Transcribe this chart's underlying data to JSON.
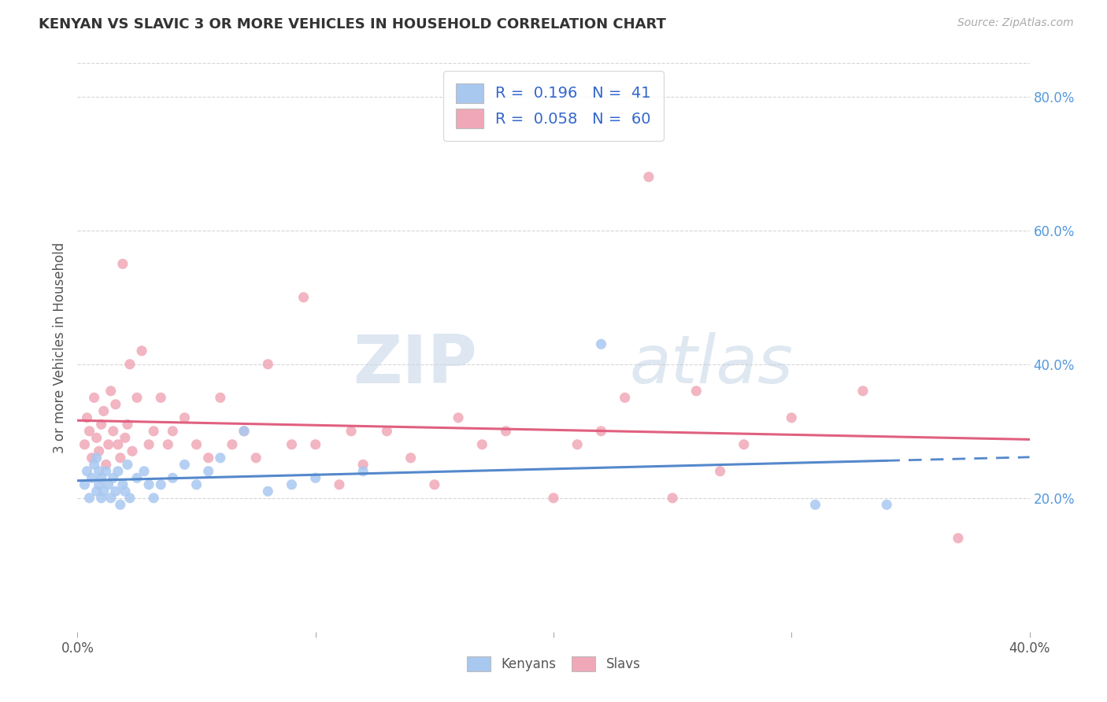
{
  "title": "KENYAN VS SLAVIC 3 OR MORE VEHICLES IN HOUSEHOLD CORRELATION CHART",
  "source_text": "Source: ZipAtlas.com",
  "ylabel": "3 or more Vehicles in Household",
  "xlabel": "",
  "xlim": [
    0.0,
    0.4
  ],
  "ylim": [
    0.0,
    0.85
  ],
  "xticks": [
    0.0,
    0.1,
    0.2,
    0.3,
    0.4
  ],
  "xticklabels": [
    "0.0%",
    "",
    "",
    "",
    "40.0%"
  ],
  "yticks_right": [
    0.2,
    0.4,
    0.6,
    0.8
  ],
  "ytick_right_labels": [
    "20.0%",
    "40.0%",
    "60.0%",
    "80.0%"
  ],
  "kenyan_color": "#a8c8f0",
  "slavic_color": "#f0a8b8",
  "kenyan_line_color": "#5588cc",
  "slavic_line_color": "#e06080",
  "legend_r_kenyan": "R =  0.196   N =  41",
  "legend_r_slavic": "R =  0.058   N =  60",
  "legend_label_kenyan": "Kenyans",
  "legend_label_slavic": "Slavs",
  "watermark_zip": "ZIP",
  "watermark_atlas": "atlas",
  "kenyan_x": [
    0.003,
    0.004,
    0.005,
    0.006,
    0.007,
    0.008,
    0.008,
    0.009,
    0.009,
    0.01,
    0.01,
    0.011,
    0.012,
    0.013,
    0.014,
    0.015,
    0.016,
    0.017,
    0.018,
    0.019,
    0.02,
    0.021,
    0.022,
    0.025,
    0.028,
    0.03,
    0.032,
    0.035,
    0.04,
    0.045,
    0.05,
    0.055,
    0.06,
    0.07,
    0.08,
    0.09,
    0.1,
    0.12,
    0.22,
    0.31,
    0.34
  ],
  "kenyan_y": [
    0.22,
    0.24,
    0.2,
    0.23,
    0.25,
    0.21,
    0.26,
    0.22,
    0.24,
    0.2,
    0.23,
    0.21,
    0.24,
    0.22,
    0.2,
    0.23,
    0.21,
    0.24,
    0.19,
    0.22,
    0.21,
    0.25,
    0.2,
    0.23,
    0.24,
    0.22,
    0.2,
    0.22,
    0.23,
    0.25,
    0.22,
    0.24,
    0.26,
    0.3,
    0.21,
    0.22,
    0.23,
    0.24,
    0.43,
    0.19,
    0.19
  ],
  "slavic_x": [
    0.003,
    0.004,
    0.005,
    0.006,
    0.007,
    0.008,
    0.009,
    0.01,
    0.011,
    0.012,
    0.013,
    0.014,
    0.015,
    0.016,
    0.017,
    0.018,
    0.019,
    0.02,
    0.021,
    0.022,
    0.023,
    0.025,
    0.027,
    0.03,
    0.032,
    0.035,
    0.038,
    0.04,
    0.045,
    0.05,
    0.055,
    0.06,
    0.065,
    0.07,
    0.075,
    0.08,
    0.09,
    0.095,
    0.1,
    0.11,
    0.115,
    0.12,
    0.13,
    0.14,
    0.15,
    0.16,
    0.17,
    0.18,
    0.2,
    0.21,
    0.22,
    0.23,
    0.24,
    0.25,
    0.26,
    0.27,
    0.28,
    0.3,
    0.33,
    0.37
  ],
  "slavic_y": [
    0.28,
    0.32,
    0.3,
    0.26,
    0.35,
    0.29,
    0.27,
    0.31,
    0.33,
    0.25,
    0.28,
    0.36,
    0.3,
    0.34,
    0.28,
    0.26,
    0.55,
    0.29,
    0.31,
    0.4,
    0.27,
    0.35,
    0.42,
    0.28,
    0.3,
    0.35,
    0.28,
    0.3,
    0.32,
    0.28,
    0.26,
    0.35,
    0.28,
    0.3,
    0.26,
    0.4,
    0.28,
    0.5,
    0.28,
    0.22,
    0.3,
    0.25,
    0.3,
    0.26,
    0.22,
    0.32,
    0.28,
    0.3,
    0.2,
    0.28,
    0.3,
    0.35,
    0.68,
    0.2,
    0.36,
    0.24,
    0.28,
    0.32,
    0.36,
    0.14
  ],
  "background_color": "#ffffff",
  "grid_color": "#cccccc"
}
